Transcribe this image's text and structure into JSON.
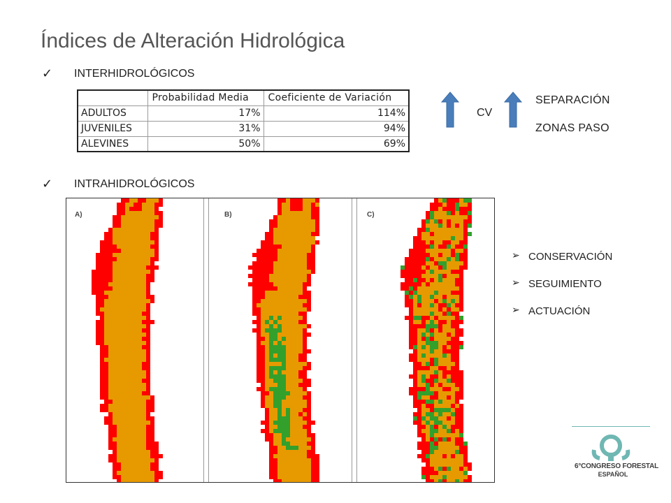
{
  "title": "Índices de Alteración Hidrológica",
  "sections": {
    "inter": {
      "check": "✓",
      "label": "INTERHIDROLÓGICOS"
    },
    "intra": {
      "check": "✓",
      "label": "INTRAHIDROLÓGICOS"
    }
  },
  "table": {
    "headers": [
      "",
      "Probabilidad Media",
      "Coeficiente de Variación"
    ],
    "rows": [
      {
        "label": "ADULTOS",
        "prob": "17%",
        "cv": "114%"
      },
      {
        "label": "JUVENILES",
        "prob": "31%",
        "cv": "94%"
      },
      {
        "label": "ALEVINES",
        "prob": "50%",
        "cv": "69%"
      }
    ]
  },
  "indicators": {
    "cv_label": "CV",
    "right_lines": [
      "SEPARACIÓN",
      "ZONAS PASO"
    ],
    "arrow_color": "#4a7ebb"
  },
  "maps": {
    "panels": [
      "A)",
      "B)",
      "C)"
    ],
    "colors": {
      "red": "#ff0000",
      "orange": "#e69a00",
      "green": "#33a02c"
    }
  },
  "actions": {
    "marker": "➢",
    "items": [
      "CONSERVACIÓN",
      "SEGUIMIENTO",
      "ACTUACIÓN"
    ]
  },
  "logo": {
    "line1": "6°CONGRESO FORESTAL",
    "line2": "ESPAÑOL",
    "color": "#6fb7b3"
  }
}
